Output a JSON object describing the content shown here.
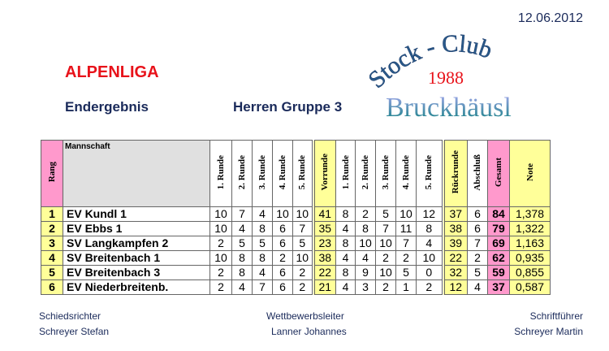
{
  "date": "12.06.2012",
  "title": "ALPENLIGA",
  "subtitle_left": "Endergebnis",
  "subtitle_right": "Herren Gruppe 3",
  "logo": {
    "line1": "Stock - Club",
    "line2": "1988",
    "line3": "Bruckhäusl"
  },
  "table": {
    "headers": {
      "rang": "Rang",
      "mannschaft": "Mannschaft",
      "r1": "1. Runde",
      "r2": "2. Runde",
      "r3": "3. Runde",
      "r4": "4. Runde",
      "r5": "5. Runde",
      "vorrunde": "Vorrunde",
      "rueckrunde": "Rückrunde",
      "abschluss": "Abschluß",
      "gesamt": "Gesamt",
      "note": "Note"
    },
    "rows": [
      {
        "rang": "1",
        "team": "EV Kundl 1",
        "vr": [
          "10",
          "7",
          "4",
          "10",
          "10"
        ],
        "vorrunde": "41",
        "rr": [
          "8",
          "2",
          "5",
          "10",
          "12"
        ],
        "rueckrunde": "37",
        "abschluss": "6",
        "gesamt": "84",
        "note": "1,378"
      },
      {
        "rang": "2",
        "team": "EV Ebbs 1",
        "vr": [
          "10",
          "4",
          "8",
          "6",
          "7"
        ],
        "vorrunde": "35",
        "rr": [
          "4",
          "8",
          "7",
          "11",
          "8"
        ],
        "rueckrunde": "38",
        "abschluss": "6",
        "gesamt": "79",
        "note": "1,322"
      },
      {
        "rang": "3",
        "team": "SV Langkampfen 2",
        "vr": [
          "2",
          "5",
          "5",
          "6",
          "5"
        ],
        "vorrunde": "23",
        "rr": [
          "8",
          "10",
          "10",
          "7",
          "4"
        ],
        "rueckrunde": "39",
        "abschluss": "7",
        "gesamt": "69",
        "note": "1,163"
      },
      {
        "rang": "4",
        "team": "SV Breitenbach 1",
        "vr": [
          "10",
          "8",
          "8",
          "2",
          "10"
        ],
        "vorrunde": "38",
        "rr": [
          "4",
          "4",
          "2",
          "2",
          "10"
        ],
        "rueckrunde": "22",
        "abschluss": "2",
        "gesamt": "62",
        "note": "0,935"
      },
      {
        "rang": "5",
        "team": "EV Breitenbach 3",
        "vr": [
          "2",
          "8",
          "4",
          "6",
          "2"
        ],
        "vorrunde": "22",
        "rr": [
          "8",
          "9",
          "10",
          "5",
          "0"
        ],
        "rueckrunde": "32",
        "abschluss": "5",
        "gesamt": "59",
        "note": "0,855"
      },
      {
        "rang": "6",
        "team": "EV Niederbreitenb.",
        "vr": [
          "2",
          "4",
          "7",
          "6",
          "2"
        ],
        "vorrunde": "21",
        "rr": [
          "4",
          "3",
          "2",
          "1",
          "2"
        ],
        "rueckrunde": "12",
        "abschluss": "4",
        "gesamt": "37",
        "note": "0,587"
      }
    ]
  },
  "footer": {
    "left": {
      "role": "Schiedsrichter",
      "name": "Schreyer Stefan"
    },
    "center": {
      "role": "Wettbewerbsleiter",
      "name": "Lanner Johannes"
    },
    "right": {
      "role": "Schriftführer",
      "name": "Schreyer Martin"
    }
  },
  "colors": {
    "yellow": "#ffff99",
    "pink": "#ff99cc",
    "title_red": "#e8121a"
  }
}
